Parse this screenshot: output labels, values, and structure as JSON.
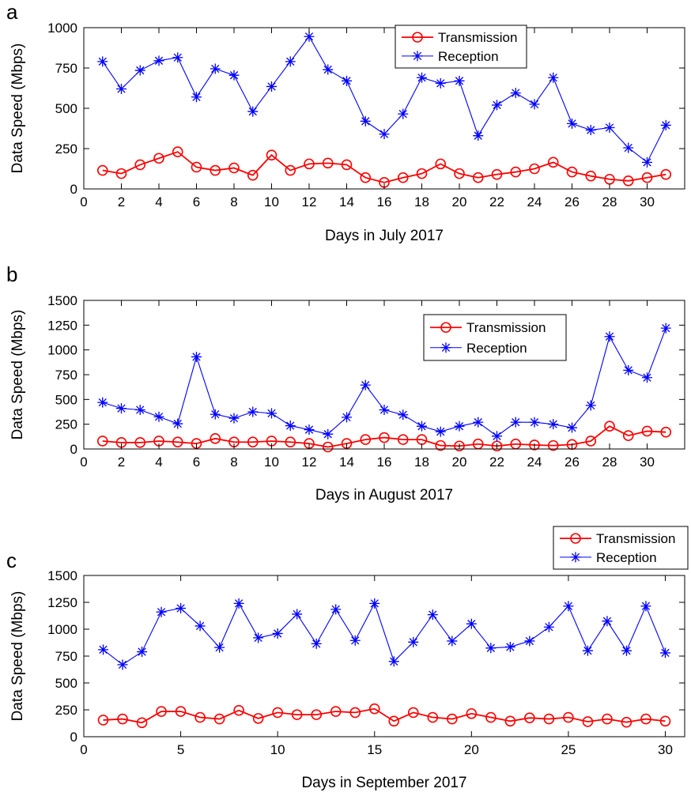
{
  "figure": {
    "series_colors": {
      "Transmission": "#ff0000",
      "Reception": "#0000ff"
    },
    "marker_styles": {
      "Transmission": "circle",
      "Reception": "asterisk"
    }
  },
  "chart_data": [
    {
      "panel_label": "a",
      "type": "line",
      "xlabel": "Days in July 2017",
      "ylabel": "Data Speed (Mbps)",
      "xlim": [
        0,
        32
      ],
      "ylim": [
        0,
        1000
      ],
      "xticks": [
        0,
        2,
        4,
        6,
        8,
        10,
        12,
        14,
        16,
        18,
        20,
        22,
        24,
        26,
        28,
        30
      ],
      "yticks": [
        0,
        250,
        500,
        750,
        1000
      ],
      "grid": false,
      "legend": "top-center",
      "x": [
        1,
        2,
        3,
        4,
        5,
        6,
        7,
        8,
        9,
        10,
        11,
        12,
        13,
        14,
        15,
        16,
        17,
        18,
        19,
        20,
        21,
        22,
        23,
        24,
        25,
        26,
        27,
        28,
        29,
        30,
        31
      ],
      "series": [
        {
          "name": "Transmission",
          "marker": "circle",
          "color": "#ff0000",
          "values": [
            115,
            95,
            150,
            190,
            230,
            135,
            115,
            130,
            85,
            210,
            115,
            155,
            160,
            150,
            70,
            40,
            70,
            95,
            155,
            95,
            70,
            90,
            105,
            125,
            165,
            105,
            80,
            60,
            50,
            70,
            90
          ]
        },
        {
          "name": "Reception",
          "marker": "asterisk",
          "color": "#0000ff",
          "values": [
            790,
            620,
            735,
            795,
            815,
            570,
            745,
            705,
            480,
            635,
            790,
            945,
            740,
            670,
            420,
            340,
            465,
            690,
            655,
            670,
            330,
            520,
            595,
            525,
            690,
            405,
            365,
            380,
            255,
            165,
            395
          ]
        }
      ]
    },
    {
      "panel_label": "b",
      "type": "line",
      "xlabel": "Days in August 2017",
      "ylabel": "Data Speed (Mbps)",
      "xlim": [
        0,
        32
      ],
      "ylim": [
        0,
        1500
      ],
      "xticks": [
        0,
        2,
        4,
        6,
        8,
        10,
        12,
        14,
        16,
        18,
        20,
        22,
        24,
        26,
        28,
        30
      ],
      "yticks": [
        0,
        250,
        500,
        750,
        1000,
        1250,
        1500
      ],
      "grid": false,
      "legend": "top-right",
      "x": [
        1,
        2,
        3,
        4,
        5,
        6,
        7,
        8,
        9,
        10,
        11,
        12,
        13,
        14,
        15,
        16,
        17,
        18,
        19,
        20,
        21,
        22,
        23,
        24,
        25,
        26,
        27,
        28,
        29,
        30,
        31
      ],
      "series": [
        {
          "name": "Transmission",
          "marker": "circle",
          "color": "#ff0000",
          "values": [
            80,
            65,
            65,
            80,
            70,
            55,
            105,
            70,
            70,
            80,
            70,
            55,
            20,
            55,
            95,
            115,
            95,
            95,
            35,
            30,
            50,
            30,
            50,
            40,
            35,
            45,
            80,
            230,
            135,
            180,
            170
          ]
        },
        {
          "name": "Reception",
          "marker": "asterisk",
          "color": "#0000ff",
          "values": [
            470,
            410,
            395,
            325,
            255,
            930,
            350,
            310,
            375,
            360,
            235,
            195,
            150,
            320,
            645,
            395,
            345,
            230,
            175,
            230,
            270,
            130,
            270,
            270,
            250,
            215,
            440,
            1135,
            795,
            720,
            1220
          ]
        }
      ]
    },
    {
      "panel_label": "c",
      "type": "line",
      "xlabel": "Days in September 2017",
      "ylabel": "Data Speed (Mbps)",
      "xlim": [
        0,
        31
      ],
      "ylim": [
        0,
        1500
      ],
      "xticks": [
        0,
        5,
        10,
        15,
        20,
        25,
        30
      ],
      "yticks": [
        0,
        250,
        500,
        750,
        1000,
        1250,
        1500
      ],
      "grid": false,
      "legend": "top-right-outside",
      "x": [
        1,
        2,
        3,
        4,
        5,
        6,
        7,
        8,
        9,
        10,
        11,
        12,
        13,
        14,
        15,
        16,
        17,
        18,
        19,
        20,
        21,
        22,
        23,
        24,
        25,
        26,
        27,
        28,
        29,
        30
      ],
      "series": [
        {
          "name": "Transmission",
          "marker": "circle",
          "color": "#ff0000",
          "values": [
            155,
            165,
            130,
            235,
            235,
            180,
            165,
            245,
            170,
            225,
            205,
            205,
            235,
            225,
            260,
            145,
            225,
            180,
            165,
            215,
            180,
            145,
            175,
            165,
            180,
            140,
            165,
            135,
            165,
            145
          ]
        },
        {
          "name": "Reception",
          "marker": "asterisk",
          "color": "#0000ff",
          "values": [
            810,
            670,
            790,
            1160,
            1195,
            1030,
            830,
            1240,
            920,
            960,
            1140,
            865,
            1185,
            895,
            1240,
            700,
            880,
            1135,
            890,
            1050,
            825,
            835,
            890,
            1020,
            1215,
            800,
            1075,
            800,
            1215,
            780
          ]
        }
      ]
    }
  ]
}
